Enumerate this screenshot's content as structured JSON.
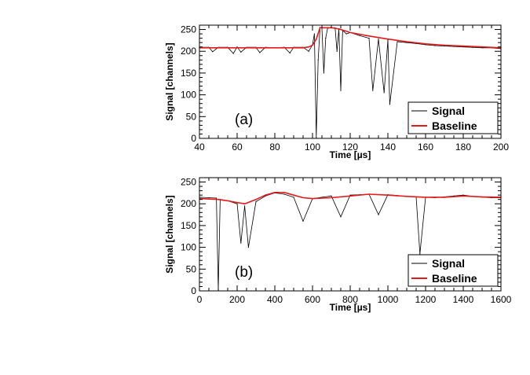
{
  "chart_data": [
    {
      "type": "line",
      "panel_label": "(a)",
      "xlabel": "Time  [µs]",
      "ylabel": "Signal  [channels]",
      "xlim": [
        40,
        200
      ],
      "ylim": [
        0,
        260
      ],
      "xticks": [
        40,
        60,
        80,
        100,
        120,
        140,
        160,
        180,
        200
      ],
      "yticks": [
        0,
        50,
        100,
        150,
        200,
        250
      ],
      "grid": false,
      "legend_position": "bottom-right",
      "legend": [
        "Signal",
        "Baseline"
      ],
      "colors": {
        "signal": "#000000",
        "baseline": "#e41a1c"
      },
      "series": [
        {
          "name": "Signal",
          "x": [
            40,
            45,
            47,
            50,
            55,
            58,
            60,
            62,
            65,
            70,
            72,
            75,
            80,
            85,
            88,
            90,
            95,
            98,
            100,
            101,
            102,
            103,
            104,
            105,
            106,
            107,
            108,
            110,
            112,
            113,
            114,
            115,
            116,
            118,
            120,
            125,
            130,
            132,
            135,
            138,
            140,
            141,
            145,
            150,
            155,
            160,
            165,
            170,
            175,
            180,
            185,
            190,
            195,
            200
          ],
          "y": [
            209,
            209,
            199,
            209,
            209,
            195,
            210,
            198,
            209,
            209,
            197,
            209,
            208,
            209,
            196,
            209,
            209,
            200,
            215,
            240,
            2,
            180,
            255,
            253,
            150,
            230,
            253,
            254,
            254,
            200,
            252,
            110,
            248,
            240,
            243,
            236,
            230,
            110,
            228,
            105,
            226,
            78,
            222,
            220,
            218,
            215,
            213,
            212,
            211,
            210,
            209,
            208,
            208,
            206
          ]
        },
        {
          "name": "Baseline",
          "x": [
            40,
            60,
            80,
            95,
            98,
            100,
            102,
            104,
            110,
            112,
            115,
            120,
            130,
            140,
            150,
            160,
            170,
            180,
            190,
            200
          ],
          "y": [
            208,
            208,
            208,
            208,
            210,
            214,
            228,
            254,
            254,
            253,
            250,
            243,
            235,
            228,
            222,
            217,
            214,
            212,
            210,
            208
          ]
        }
      ]
    },
    {
      "type": "line",
      "panel_label": "(b)",
      "xlabel": "Time  [µs]",
      "ylabel": "Signal  [channels]",
      "xlim": [
        0,
        1600
      ],
      "ylim": [
        0,
        260
      ],
      "xticks": [
        0,
        200,
        400,
        600,
        800,
        1000,
        1200,
        1400,
        1600
      ],
      "yticks": [
        0,
        50,
        100,
        150,
        200,
        250
      ],
      "grid": false,
      "legend_position": "bottom-right",
      "legend": [
        "Signal",
        "Baseline"
      ],
      "colors": {
        "signal": "#000000",
        "baseline": "#e41a1c"
      },
      "series": [
        {
          "name": "Signal",
          "x": [
            0,
            50,
            90,
            100,
            110,
            150,
            200,
            220,
            240,
            260,
            300,
            350,
            400,
            450,
            500,
            550,
            600,
            650,
            700,
            750,
            800,
            850,
            900,
            950,
            1000,
            1050,
            1100,
            1150,
            1170,
            1200,
            1250,
            1300,
            1350,
            1400,
            1450,
            1500,
            1550,
            1600
          ],
          "y": [
            215,
            214,
            213,
            2,
            210,
            207,
            200,
            110,
            195,
            100,
            205,
            218,
            225,
            222,
            215,
            160,
            212,
            215,
            218,
            170,
            220,
            221,
            222,
            175,
            221,
            219,
            217,
            216,
            85,
            215,
            214,
            216,
            218,
            220,
            217,
            215,
            214,
            214
          ]
        },
        {
          "name": "Baseline",
          "x": [
            0,
            100,
            150,
            200,
            240,
            300,
            350,
            400,
            450,
            500,
            550,
            600,
            700,
            800,
            900,
            1000,
            1100,
            1200,
            1300,
            1400,
            1500,
            1600
          ],
          "y": [
            212,
            210,
            207,
            203,
            200,
            210,
            220,
            226,
            226,
            220,
            214,
            212,
            214,
            218,
            222,
            220,
            217,
            215,
            215,
            218,
            216,
            215
          ]
        }
      ]
    }
  ]
}
